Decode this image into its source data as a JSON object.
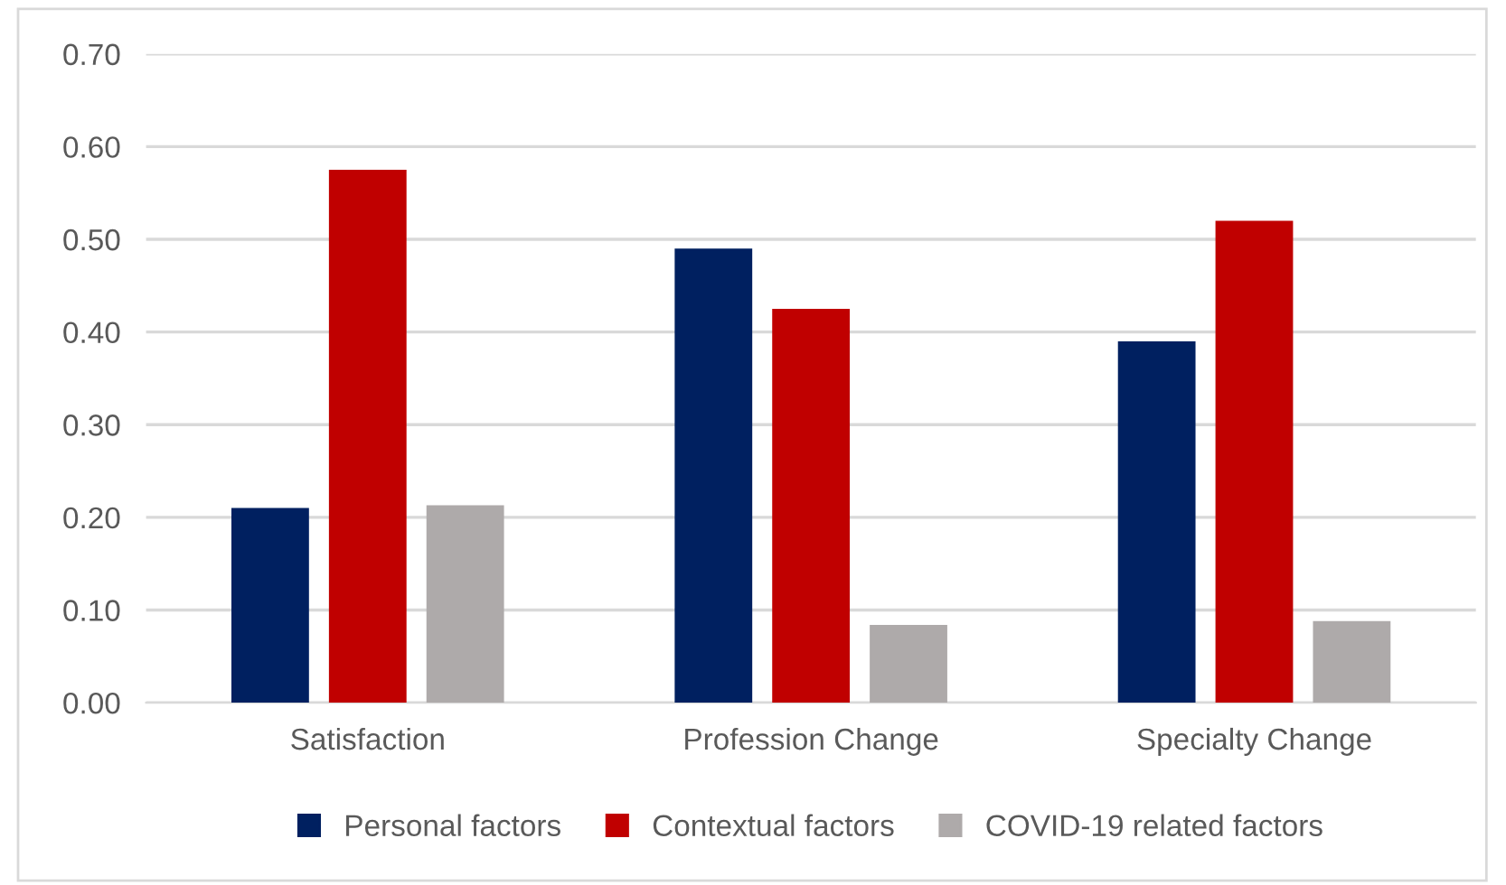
{
  "chart_data": {
    "type": "bar",
    "categories": [
      "Satisfaction",
      "Profession Change",
      "Specialty Change"
    ],
    "series": [
      {
        "name": "Personal factors",
        "color": "#002060",
        "values": [
          0.21,
          0.49,
          0.39
        ]
      },
      {
        "name": "Contextual factors",
        "color": "#c00000",
        "values": [
          0.575,
          0.425,
          0.52
        ]
      },
      {
        "name": "COVID-19 related factors",
        "color": "#aeaaaa",
        "values": [
          0.213,
          0.084,
          0.088
        ]
      }
    ],
    "ylim": [
      0,
      0.7
    ],
    "yticks": [
      {
        "value": 0,
        "label": "0.00"
      },
      {
        "value": 0.1,
        "label": "0.10"
      },
      {
        "value": 0.2,
        "label": "0.20"
      },
      {
        "value": 0.3,
        "label": "0.30"
      },
      {
        "value": 0.4,
        "label": "0.40"
      },
      {
        "value": 0.5,
        "label": "0.50"
      },
      {
        "value": 0.6,
        "label": "0.60"
      },
      {
        "value": 0.7,
        "label": "0.70"
      }
    ],
    "grid": "y",
    "legend": "bottom"
  }
}
